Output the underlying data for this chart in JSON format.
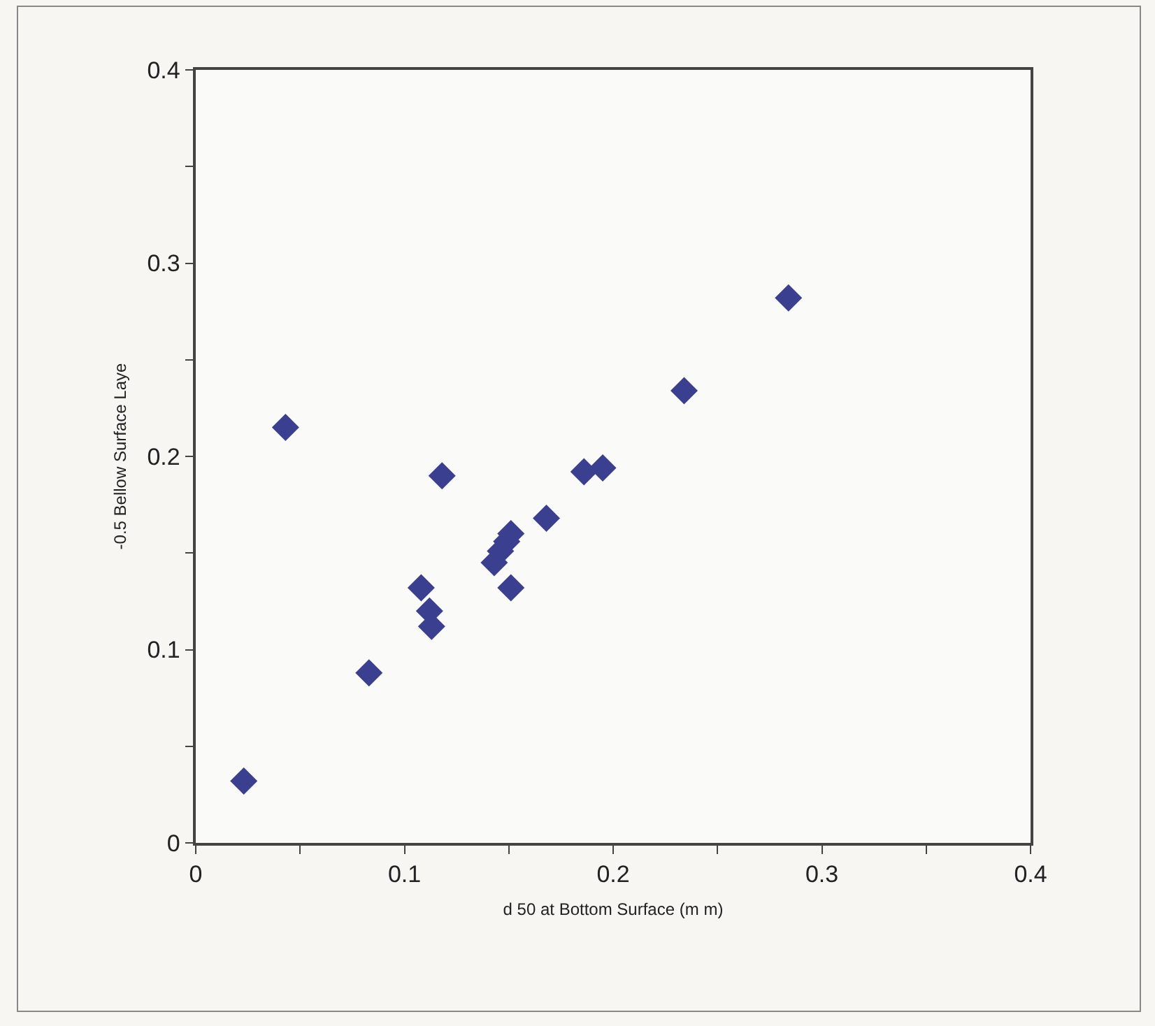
{
  "chart_data": {
    "type": "scatter",
    "xlabel": "d 50 at Bottom Surface (m m)",
    "ylabel": "-0.5 Bellow Surface Laye",
    "x": [
      0.023,
      0.043,
      0.083,
      0.108,
      0.112,
      0.113,
      0.118,
      0.143,
      0.146,
      0.149,
      0.151,
      0.151,
      0.168,
      0.186,
      0.195,
      0.234,
      0.284
    ],
    "series": [
      {
        "color": "#3b3f8f",
        "values": [
          0.032,
          0.215,
          0.088,
          0.132,
          0.12,
          0.112,
          0.19,
          0.145,
          0.151,
          0.156,
          0.16,
          0.132,
          0.168,
          0.192,
          0.194,
          0.234,
          0.282
        ]
      }
    ],
    "xlim": [
      0,
      0.4
    ],
    "ylim": [
      0,
      0.4
    ],
    "xticks": [
      0,
      {
        "value": 0.05,
        "label": null
      },
      0.1,
      {
        "value": 0.15,
        "label": null
      },
      0.2,
      {
        "value": 0.25,
        "label": null
      },
      0.3,
      {
        "value": 0.35,
        "label": null
      },
      0.4
    ],
    "yticks": [
      0,
      {
        "value": 0.05,
        "label": null
      },
      0.1,
      {
        "value": 0.15,
        "label": null
      },
      0.2,
      {
        "value": 0.25,
        "label": null
      },
      0.3,
      {
        "value": 0.35,
        "label": null
      },
      0.4
    ],
    "grid": false,
    "marker": "diamond"
  }
}
